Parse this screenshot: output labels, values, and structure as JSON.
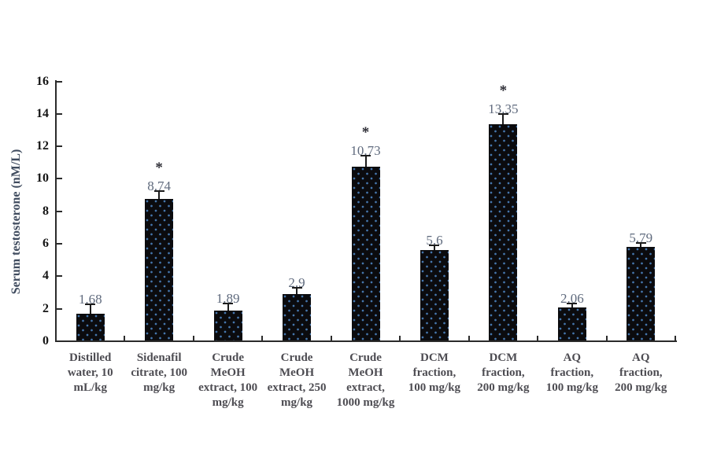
{
  "chart_data": {
    "type": "bar",
    "title": "",
    "ylabel": "Serum testosterone (nM/L)",
    "xlabel": "",
    "ylim": [
      0,
      16
    ],
    "ytick_interval": 2,
    "yticks": [
      0,
      2,
      4,
      6,
      8,
      10,
      12,
      14,
      16
    ],
    "grid": false,
    "legend_position": "none",
    "significance_marker": "*",
    "bar_color": "#0b0b0e",
    "bar_pattern_dot_color": "#4576ad",
    "axis_color": "#2b2b2b",
    "value_label_color": "#5f6a7d",
    "category_label_color": "#4d4c52",
    "tick_label_color": "#151515",
    "ylabel_color": "#3f4b5e",
    "categories": [
      "Distilled water, 10 mL/kg",
      "Sidenafil citrate, 100 mg/kg",
      "Crude MeOH extract, 100 mg/kg",
      "Crude MeOH extract, 250 mg/kg",
      "Crude MeOH extract, 1000 mg/kg",
      "DCM fraction, 100 mg/kg",
      "DCM fraction, 200 mg/kg",
      "AQ fraction, 100 mg/kg",
      "AQ fraction, 200 mg/kg"
    ],
    "values": [
      1.68,
      8.74,
      1.89,
      2.9,
      10.73,
      5.6,
      13.35,
      2.06,
      5.79
    ],
    "points": [
      {
        "label_lines": [
          "Distilled",
          "water, 10",
          "mL/kg"
        ],
        "value": 1.68,
        "value_label": "1.68",
        "error_up": 0.6,
        "significant": false
      },
      {
        "label_lines": [
          "Sidenafil",
          "citrate, 100",
          "mg/kg"
        ],
        "value": 8.74,
        "value_label": "8.74",
        "error_up": 0.5,
        "significant": true
      },
      {
        "label_lines": [
          "Crude",
          "MeOH",
          "extract, 100",
          "mg/kg"
        ],
        "value": 1.89,
        "value_label": "1.89",
        "error_up": 0.45,
        "significant": false
      },
      {
        "label_lines": [
          "Crude",
          "MeOH",
          "extract, 250",
          "mg/kg"
        ],
        "value": 2.9,
        "value_label": "2.9",
        "error_up": 0.4,
        "significant": false
      },
      {
        "label_lines": [
          "Crude",
          "MeOH",
          "extract,",
          "1000 mg/kg"
        ],
        "value": 10.73,
        "value_label": "10.73",
        "error_up": 0.7,
        "significant": true
      },
      {
        "label_lines": [
          "DCM",
          "fraction,",
          "100 mg/kg"
        ],
        "value": 5.6,
        "value_label": "5.6",
        "error_up": 0.3,
        "significant": false
      },
      {
        "label_lines": [
          "DCM",
          "fraction,",
          "200 mg/kg"
        ],
        "value": 13.35,
        "value_label": "13.35",
        "error_up": 0.65,
        "significant": true
      },
      {
        "label_lines": [
          "AQ",
          "fraction,",
          "100 mg/kg"
        ],
        "value": 2.06,
        "value_label": "2.06",
        "error_up": 0.25,
        "significant": false
      },
      {
        "label_lines": [
          "AQ",
          "fraction,",
          "200 mg/kg"
        ],
        "value": 5.79,
        "value_label": "5.79",
        "error_up": 0.25,
        "significant": false
      }
    ]
  }
}
